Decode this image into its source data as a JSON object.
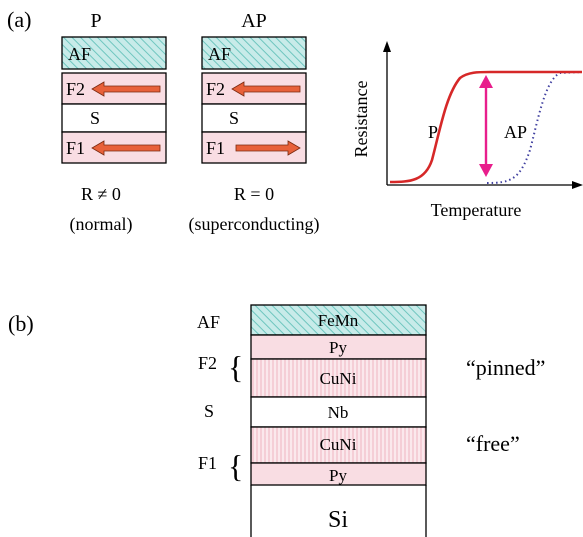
{
  "panel_a": {
    "label": "(a)",
    "stack_p": {
      "title": "P",
      "layers": {
        "af": "AF",
        "f2": "F2",
        "s": "S",
        "f1": "F1"
      },
      "result_line1": "R ≠ 0",
      "result_line2": "(normal)"
    },
    "stack_ap": {
      "title": "AP",
      "layers": {
        "af": "AF",
        "f2": "F2",
        "s": "S",
        "f1": "F1"
      },
      "result_line1": "R = 0",
      "result_line2": "(superconducting)"
    },
    "graph": {
      "ylabel": "Resistance",
      "xlabel": "Temperature",
      "curve_p_label": "P",
      "curve_ap_label": "AP"
    }
  },
  "panel_b": {
    "label": "(b)",
    "left_labels": {
      "af": "AF",
      "f2": "F2",
      "s": "S",
      "f1": "F1"
    },
    "layers": {
      "femn": "FeMn",
      "py_top": "Py",
      "cuni_top": "CuNi",
      "nb": "Nb",
      "cuni_bottom": "CuNi",
      "py_bottom": "Py",
      "si": "Si"
    },
    "annot_pinned": "“pinned”",
    "annot_free": "“free”"
  },
  "colors": {
    "af_fill": "#c8ebe9",
    "af_hatch": "#6fc6bf",
    "ferro_fill": "#f9dde3",
    "cuni_stripe": "#f3c3cc",
    "arrow": "#e8613a",
    "curve_p": "#d62828",
    "curve_ap": "#4040a0",
    "marker": "#e81e8c"
  }
}
